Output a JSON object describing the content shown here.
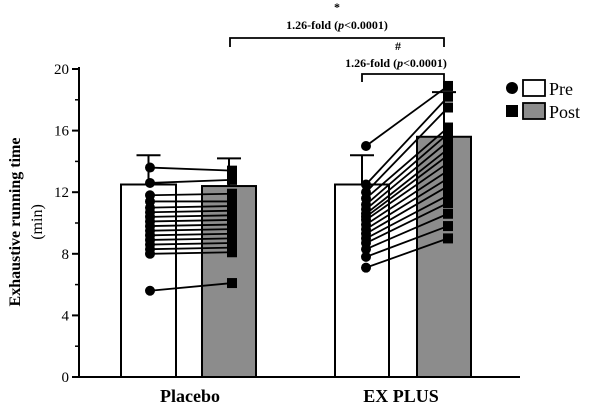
{
  "chart_data": {
    "type": "bar",
    "categories": [
      "Placebo",
      "EX PLUS"
    ],
    "ylabel": "Exhaustive running time",
    "yunit": "(min)",
    "ylim": [
      0,
      20
    ],
    "yticks": [
      "0",
      "4",
      "8",
      "12",
      "16",
      "20"
    ],
    "series": [
      {
        "name": "Pre",
        "values": [
          12.5,
          12.5
        ],
        "sd": [
          1.9,
          1.9
        ]
      },
      {
        "name": "Post",
        "values": [
          12.4,
          15.6
        ],
        "sd": [
          1.8,
          2.9
        ]
      }
    ],
    "paired_points": [
      {
        "category": "Placebo",
        "pre": [
          5.6,
          8.0,
          8.3,
          8.6,
          8.9,
          9.2,
          9.5,
          9.8,
          10.1,
          10.4,
          10.7,
          11.0,
          11.4,
          11.8,
          12.6,
          13.6
        ],
        "post": [
          6.1,
          8.1,
          8.4,
          8.7,
          9.0,
          9.3,
          9.6,
          9.9,
          10.2,
          10.5,
          10.8,
          11.1,
          11.4,
          11.9,
          12.8,
          13.4
        ]
      },
      {
        "category": "EX PLUS",
        "pre": [
          7.1,
          7.8,
          8.3,
          8.7,
          9.0,
          9.3,
          9.6,
          9.9,
          10.2,
          10.4,
          10.6,
          10.9,
          11.2,
          11.6,
          12.0,
          12.5,
          15.0
        ],
        "post": [
          9.0,
          9.8,
          10.6,
          11.3,
          11.8,
          12.4,
          12.9,
          13.4,
          13.9,
          14.4,
          14.8,
          15.3,
          15.8,
          16.2,
          17.5,
          18.2,
          18.9
        ]
      }
    ],
    "annotations": [
      {
        "symbol": "*",
        "text": "1.26-fold (p<0.0001)",
        "p_symbol": "p",
        "fold": "1.26-fold (",
        "p_rest": "<0.0001)"
      },
      {
        "symbol": "#",
        "text": "1.26-fold (p<0.0001)",
        "p_symbol": "p",
        "fold": "1.26-fold (",
        "p_rest": "<0.0001)"
      }
    ],
    "legend": [
      "Pre",
      "Post"
    ],
    "legend_position": "top-right",
    "colors": {
      "pre": "#ffffff",
      "post": "#8c8c8c",
      "stroke": "#000000"
    }
  }
}
